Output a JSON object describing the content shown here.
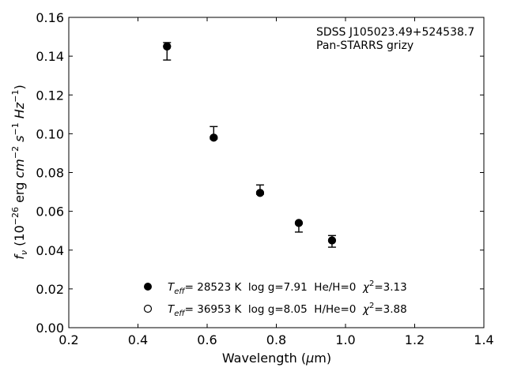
{
  "chart_data": {
    "type": "scatter",
    "title": "",
    "xlabel": {
      "main": "Wavelength (",
      "sym": "μ",
      "unit": "m)"
    },
    "ylabel": {
      "f": "f",
      "f_sub": "ν",
      "open": " (10",
      "exp": "−26",
      "erg": " erg ",
      "cm": "cm",
      "cm_exp": "−2",
      "s": " s",
      "s_exp": "−1",
      "hz": " Hz",
      "hz_exp": "−1",
      "close": ")"
    },
    "xlim": [
      0.2,
      1.4
    ],
    "ylim": [
      0.0,
      0.16
    ],
    "x_ticks": [
      0.2,
      0.4,
      0.6,
      0.8,
      1.0,
      1.2,
      1.4
    ],
    "x_tick_labels": [
      "0.2",
      "0.4",
      "0.6",
      "0.8",
      "1.0",
      "1.2",
      "1.4"
    ],
    "y_ticks": [
      0.0,
      0.02,
      0.04,
      0.06,
      0.08,
      0.1,
      0.12,
      0.14,
      0.16
    ],
    "y_tick_labels": [
      "0.00",
      "0.02",
      "0.04",
      "0.06",
      "0.08",
      "0.10",
      "0.12",
      "0.14",
      "0.16"
    ],
    "annotation": [
      "SDSS J105023.49+524538.7",
      "Pan-STARRS grizy"
    ],
    "grid": false,
    "legend_position": "lower-center",
    "series": [
      {
        "marker": "filled-circle",
        "legend": {
          "T": "T",
          "T_sub": "eff",
          "t1": "= 28523 K  log g=7.91  He/H=0  ",
          "chi": "χ",
          "chi_sup": "2",
          "t2": "=3.13"
        },
        "points": [
          {
            "x": 0.484,
            "y": 0.145
          },
          {
            "x": 0.619,
            "y": 0.098
          },
          {
            "x": 0.753,
            "y": 0.0695
          },
          {
            "x": 0.865,
            "y": 0.054
          },
          {
            "x": 0.961,
            "y": 0.045
          }
        ]
      },
      {
        "marker": "open-circle",
        "legend": {
          "T": "T",
          "T_sub": "eff",
          "t1": "= 36953 K  log g=8.05  H/He=0  ",
          "chi": "χ",
          "chi_sup": "2",
          "t2": "=3.88"
        },
        "points": [
          {
            "x": 0.484,
            "y": 0.145
          },
          {
            "x": 0.619,
            "y": 0.098
          },
          {
            "x": 0.753,
            "y": 0.0695
          },
          {
            "x": 0.865,
            "y": 0.054
          },
          {
            "x": 0.961,
            "y": 0.045
          }
        ]
      }
    ],
    "observed": [
      {
        "x": 0.484,
        "y": 0.1425,
        "err": 0.0045
      },
      {
        "x": 0.619,
        "y": 0.1005,
        "err": 0.0032
      },
      {
        "x": 0.753,
        "y": 0.0712,
        "err": 0.0024
      },
      {
        "x": 0.865,
        "y": 0.0515,
        "err": 0.0022
      },
      {
        "x": 0.961,
        "y": 0.0445,
        "err": 0.003
      }
    ]
  }
}
